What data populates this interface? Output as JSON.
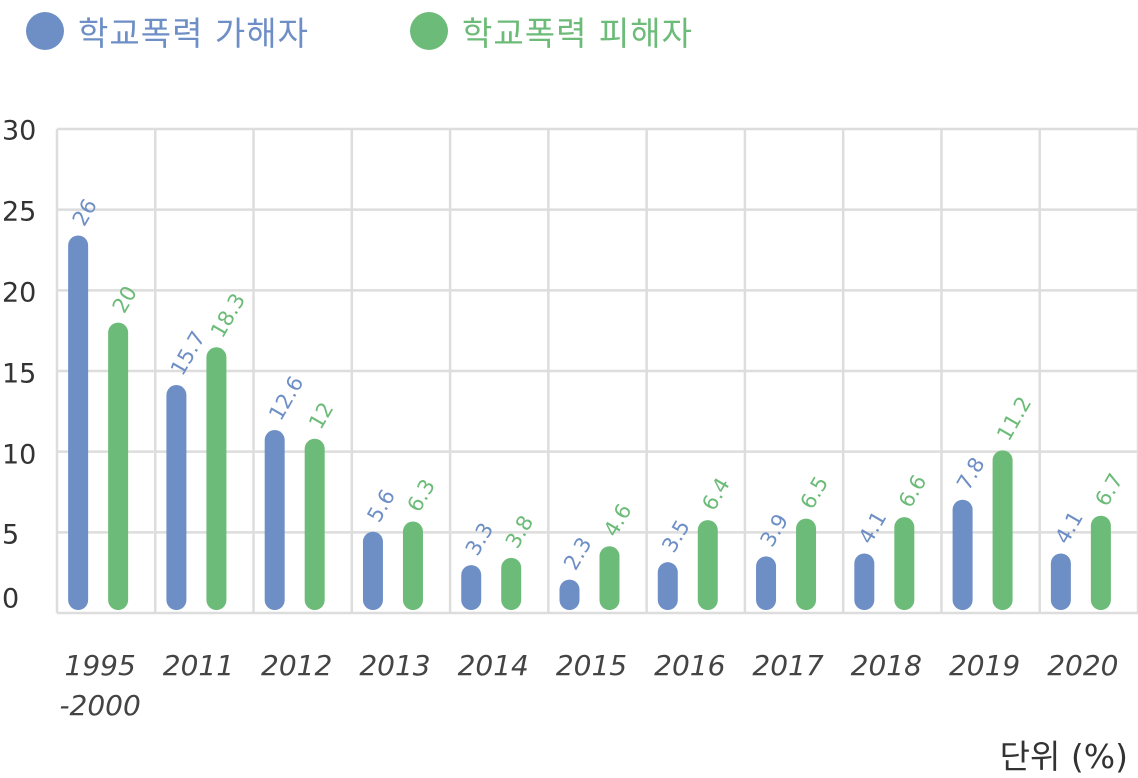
{
  "legend": {
    "series_a": {
      "label": "학교폭력 가해자",
      "color": "#6e8fc6"
    },
    "series_b": {
      "label": "학교폭력 피해자",
      "color": "#6cbb78"
    }
  },
  "unit_label": "단위 (%)",
  "chart_data": {
    "type": "bar",
    "categories": [
      "1995\n-2000",
      "2011",
      "2012",
      "2013",
      "2014",
      "2015",
      "2016",
      "2017",
      "2018",
      "2019",
      "2020"
    ],
    "series": [
      {
        "name": "학교폭력 가해자",
        "color": "#6e8fc6",
        "values": [
          26,
          15.7,
          12.6,
          5.6,
          3.3,
          2.3,
          3.5,
          3.9,
          4.1,
          7.8,
          4.1
        ]
      },
      {
        "name": "학교폭력 피해자",
        "color": "#6cbb78",
        "values": [
          20,
          18.3,
          12,
          6.3,
          3.8,
          4.6,
          6.4,
          6.5,
          6.6,
          11.2,
          6.7
        ]
      }
    ],
    "yticks": [
      0,
      5,
      10,
      15,
      20,
      25,
      30
    ],
    "ylim": [
      0,
      30
    ],
    "grid": true,
    "legend_position": "top-left"
  }
}
